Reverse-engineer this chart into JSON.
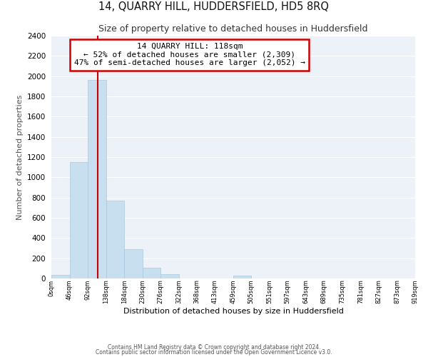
{
  "title": "14, QUARRY HILL, HUDDERSFIELD, HD5 8RQ",
  "subtitle": "Size of property relative to detached houses in Huddersfield",
  "xlabel": "Distribution of detached houses by size in Huddersfield",
  "ylabel": "Number of detached properties",
  "bar_color": "#c8dff0",
  "bar_edge_color": "#aac8e0",
  "background_color": "#edf2f8",
  "grid_color": "#ffffff",
  "annotation_box_color": "#ffffff",
  "annotation_box_edge": "#cc0000",
  "property_line_color": "#cc0000",
  "bin_edges": [
    0,
    46,
    92,
    138,
    184,
    230,
    276,
    322,
    368,
    413,
    459,
    505,
    551,
    597,
    643,
    689,
    735,
    781,
    827,
    873,
    919
  ],
  "bar_heights": [
    35,
    1150,
    1960,
    770,
    290,
    105,
    45,
    0,
    0,
    0,
    25,
    0,
    0,
    0,
    0,
    0,
    0,
    0,
    0,
    0
  ],
  "property_size": 118,
  "property_label": "14 QUARRY HILL: 118sqm",
  "smaller_pct": 52,
  "smaller_count": 2309,
  "larger_pct": 47,
  "larger_count": 2052,
  "ylim": [
    0,
    2400
  ],
  "yticks": [
    0,
    200,
    400,
    600,
    800,
    1000,
    1200,
    1400,
    1600,
    1800,
    2000,
    2200,
    2400
  ],
  "footnote1": "Contains HM Land Registry data © Crown copyright and database right 2024.",
  "footnote2": "Contains public sector information licensed under the Open Government Licence v3.0."
}
